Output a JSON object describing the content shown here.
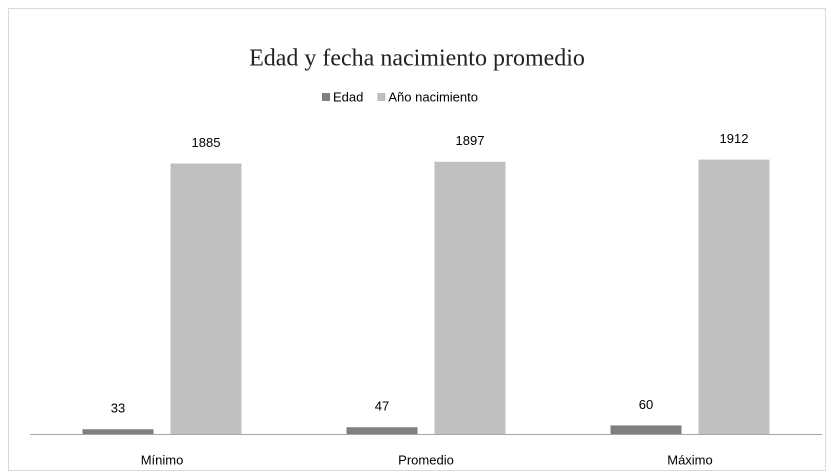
{
  "chart_data": {
    "type": "bar",
    "title": "Edad y fecha nacimiento promedio",
    "categories": [
      "Mínimo",
      "Promedio",
      "Máximo"
    ],
    "series": [
      {
        "name": "Edad",
        "color": "#7f7f7f",
        "values": [
          33,
          47,
          60
        ]
      },
      {
        "name": "Año nacimiento",
        "color": "#bfbfbf",
        "values": [
          1885,
          1897,
          1912
        ]
      }
    ],
    "ylim": [
      0,
      2000
    ],
    "legend": "top"
  }
}
